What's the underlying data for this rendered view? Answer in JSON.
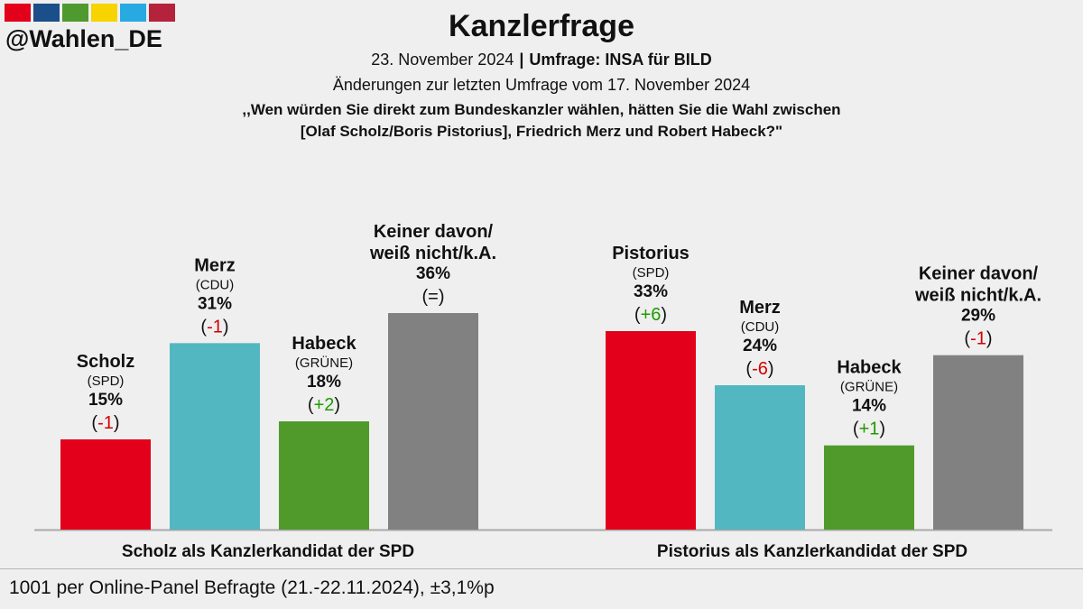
{
  "brand_stripes": [
    "#e2001a",
    "#1a4f8a",
    "#4f9a2e",
    "#f7d400",
    "#27a9e1",
    "#b5223b"
  ],
  "header": {
    "handle": "@Wahlen_DE",
    "title": "Kanzlerfrage",
    "date": "23. November 2024",
    "separator": "|",
    "poll": "Umfrage: INSA für BILD",
    "change_note": "Änderungen zur letzten Umfrage vom 17. November 2024",
    "question_line1": ",,Wen würden Sie direkt zum Bundeskanzler wählen, hätten Sie die Wahl zwischen",
    "question_line2": "[Olaf Scholz/Boris Pistorius], Friedrich Merz und Robert Habeck?\""
  },
  "chart_data": {
    "type": "bar",
    "title": "Kanzlerfrage",
    "ylim": [
      0,
      40
    ],
    "unit": "%",
    "groups": [
      {
        "label": "Scholz als Kanzlerkandidat der SPD",
        "bars": [
          {
            "name": "Scholz",
            "party": "(SPD)",
            "value": 15,
            "change": "-1",
            "color": "#e2001a"
          },
          {
            "name": "Merz",
            "party": "(CDU)",
            "value": 31,
            "change": "-1",
            "color": "#52b7c1"
          },
          {
            "name": "Habeck",
            "party": "(GRÜNE)",
            "value": 18,
            "change": "+2",
            "color": "#509a2c"
          },
          {
            "name": "Keiner davon/ weiß nicht/k.A.",
            "party": "",
            "value": 36,
            "change": "=",
            "color": "#818181"
          }
        ]
      },
      {
        "label": "Pistorius als Kanzlerkandidat der SPD",
        "bars": [
          {
            "name": "Pistorius",
            "party": "(SPD)",
            "value": 33,
            "change": "+6",
            "color": "#e2001a"
          },
          {
            "name": "Merz",
            "party": "(CDU)",
            "value": 24,
            "change": "-6",
            "color": "#52b7c1"
          },
          {
            "name": "Habeck",
            "party": "(GRÜNE)",
            "value": 14,
            "change": "+1",
            "color": "#509a2c"
          },
          {
            "name": "Keiner davon/ weiß nicht/k.A.",
            "party": "",
            "value": 29,
            "change": "-1",
            "color": "#818181"
          }
        ]
      }
    ],
    "change_colors": {
      "negative": "#d60000",
      "positive": "#1f9a00",
      "neutral": "#111111"
    }
  },
  "footer": {
    "note": "1001 per Online-Panel Befragte (21.-22.11.2024), ±3,1%p"
  }
}
